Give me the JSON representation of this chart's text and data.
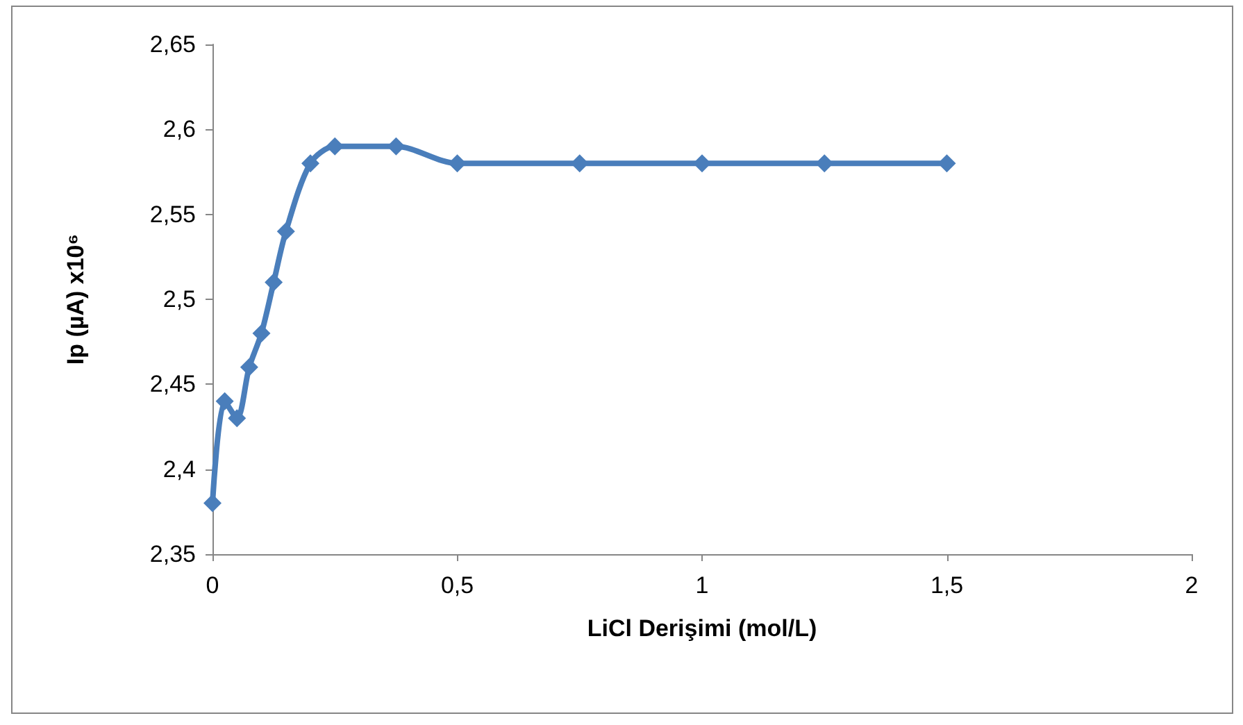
{
  "chart_data": {
    "type": "line",
    "xlabel": "LiCl Derişimi (mol/L)",
    "ylabel": "Ip (µA) x10⁶",
    "x": [
      0,
      0.025,
      0.05,
      0.075,
      0.1,
      0.125,
      0.15,
      0.2,
      0.25,
      0.375,
      0.5,
      0.75,
      1,
      1.25,
      1.5
    ],
    "series": [
      {
        "color": "#4a7ebb",
        "values": [
          2.38,
          2.44,
          2.43,
          2.46,
          2.48,
          2.51,
          2.54,
          2.58,
          2.59,
          2.59,
          2.58,
          2.58,
          2.58,
          2.58,
          2.58
        ]
      }
    ],
    "xlim": [
      0,
      2
    ],
    "xticks": [
      {
        "value": 0,
        "label": "0"
      },
      {
        "value": 0.5,
        "label": "0,5"
      },
      {
        "value": 1,
        "label": "1"
      },
      {
        "value": 1.5,
        "label": "1,5"
      },
      {
        "value": 2,
        "label": "2"
      }
    ],
    "ylim": [
      2.35,
      2.65
    ],
    "yticks": [
      {
        "value": 2.35,
        "label": "2,35"
      },
      {
        "value": 2.4,
        "label": "2,4"
      },
      {
        "value": 2.45,
        "label": "2,45"
      },
      {
        "value": 2.5,
        "label": "2,5"
      },
      {
        "value": 2.55,
        "label": "2,55"
      },
      {
        "value": 2.6,
        "label": "2,6"
      },
      {
        "value": 2.65,
        "label": "2,65"
      }
    ],
    "marker": "diamond",
    "line_style": "solid"
  }
}
